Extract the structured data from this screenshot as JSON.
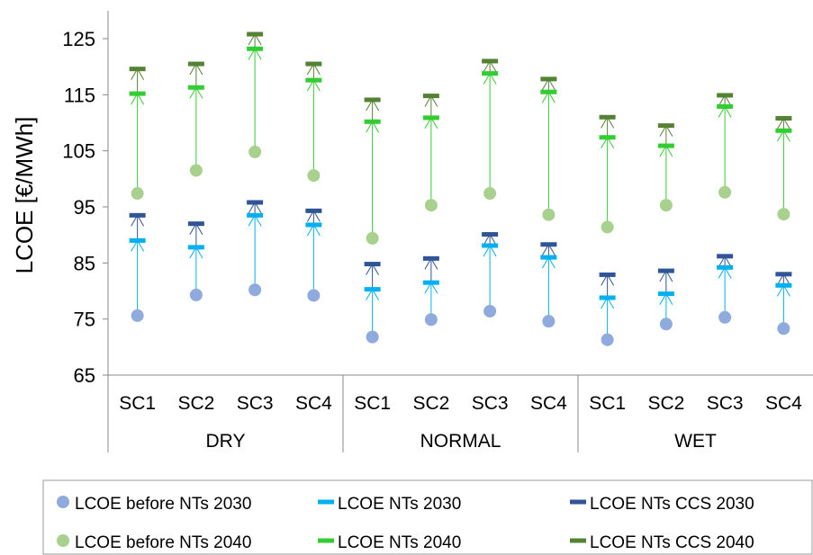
{
  "chart_data": {
    "type": "scatter",
    "ylabel": "LCOE [€/MWh]",
    "ylim": [
      65,
      125
    ],
    "yticks": [
      65,
      75,
      85,
      95,
      105,
      115,
      125
    ],
    "grid": false,
    "legend_position": "bottom",
    "groups": [
      {
        "label": "DRY",
        "categories": [
          "SC1",
          "SC2",
          "SC3",
          "SC4"
        ]
      },
      {
        "label": "NORMAL",
        "categories": [
          "SC1",
          "SC2",
          "SC3",
          "SC4"
        ]
      },
      {
        "label": "WET",
        "categories": [
          "SC1",
          "SC2",
          "SC3",
          "SC4"
        ]
      }
    ],
    "series": [
      {
        "name": "LCOE before NTs 2030",
        "marker": "circle",
        "color": "#8faadc",
        "values": [
          75.6,
          79.3,
          80.2,
          79.2,
          71.8,
          74.9,
          76.4,
          74.6,
          71.3,
          74.1,
          75.3,
          73.3
        ]
      },
      {
        "name": "LCOE NTs 2030",
        "marker": "dash",
        "color": "#00b0f0",
        "values": [
          89.0,
          87.8,
          93.5,
          91.8,
          80.3,
          81.5,
          88.1,
          86.0,
          78.8,
          79.5,
          84.2,
          81.0
        ]
      },
      {
        "name": "LCOE NTs CCS 2030",
        "marker": "dash",
        "color": "#2f5597",
        "values": [
          93.5,
          92.0,
          95.8,
          94.3,
          84.8,
          85.8,
          90.1,
          88.3,
          82.9,
          83.6,
          86.2,
          83.0
        ]
      },
      {
        "name": "LCOE before NTs 2040",
        "marker": "circle",
        "color": "#a9d18e",
        "values": [
          97.4,
          101.5,
          104.8,
          100.6,
          89.4,
          95.3,
          97.4,
          93.6,
          91.4,
          95.3,
          97.6,
          93.7
        ]
      },
      {
        "name": "LCOE NTs 2040",
        "marker": "dash",
        "color": "#33cc33",
        "values": [
          115.2,
          116.3,
          123.2,
          117.6,
          110.2,
          110.9,
          118.8,
          115.5,
          107.4,
          105.9,
          112.9,
          108.6
        ]
      },
      {
        "name": "LCOE NTs CCS 2040",
        "marker": "dash",
        "color": "#548235",
        "values": [
          119.6,
          120.5,
          125.8,
          120.5,
          114.1,
          114.8,
          121.0,
          117.8,
          111.0,
          109.5,
          114.9,
          110.8
        ]
      }
    ]
  }
}
